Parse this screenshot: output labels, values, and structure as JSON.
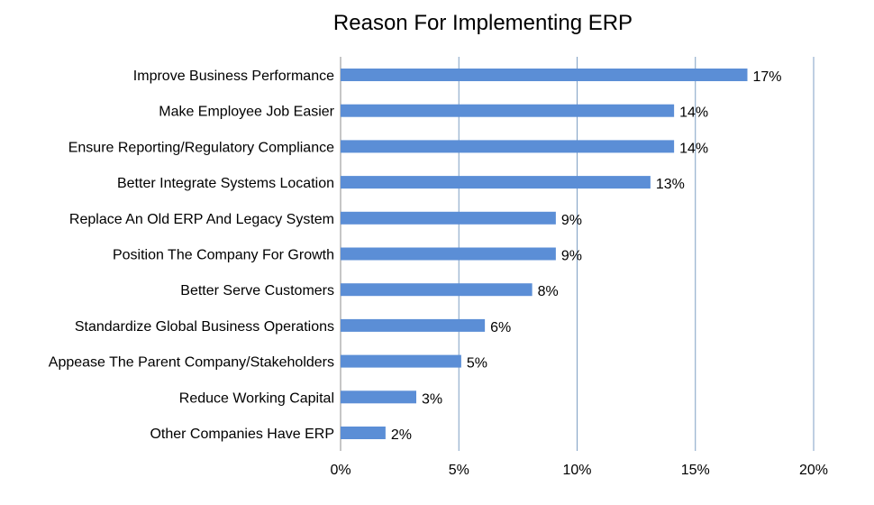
{
  "colors": {
    "bar": "#5b8ed6",
    "grid": "#7f9fc4",
    "axis": "#8c8c8c",
    "text": "#000000"
  },
  "chart_data": {
    "type": "bar",
    "orientation": "horizontal",
    "title": "Reason For Implementing ERP",
    "xlabel": "",
    "ylabel": "",
    "categories": [
      "Improve Business Performance",
      "Make Employee Job Easier",
      "Ensure Reporting/Regulatory Compliance",
      "Better Integrate Systems Location",
      "Replace An Old ERP And Legacy System",
      "Position The Company For Growth",
      "Better Serve Customers",
      "Standardize Global Business Operations",
      "Appease The Parent Company/Stakeholders",
      "Reduce Working Capital",
      "Other Companies Have ERP"
    ],
    "values": [
      17.2,
      14.1,
      14.1,
      13.1,
      9.1,
      9.1,
      8.1,
      6.1,
      5.1,
      3.2,
      1.9
    ],
    "data_labels": [
      "17%",
      "14%",
      "14%",
      "13%",
      "9%",
      "9%",
      "8%",
      "6%",
      "5%",
      "3%",
      "2%"
    ],
    "x_ticks": [
      0,
      5,
      10,
      15,
      20
    ],
    "x_tick_labels": [
      "0%",
      "5%",
      "10%",
      "15%",
      "20%"
    ],
    "xlim": [
      0,
      20
    ],
    "grid": true,
    "legend": "none"
  }
}
